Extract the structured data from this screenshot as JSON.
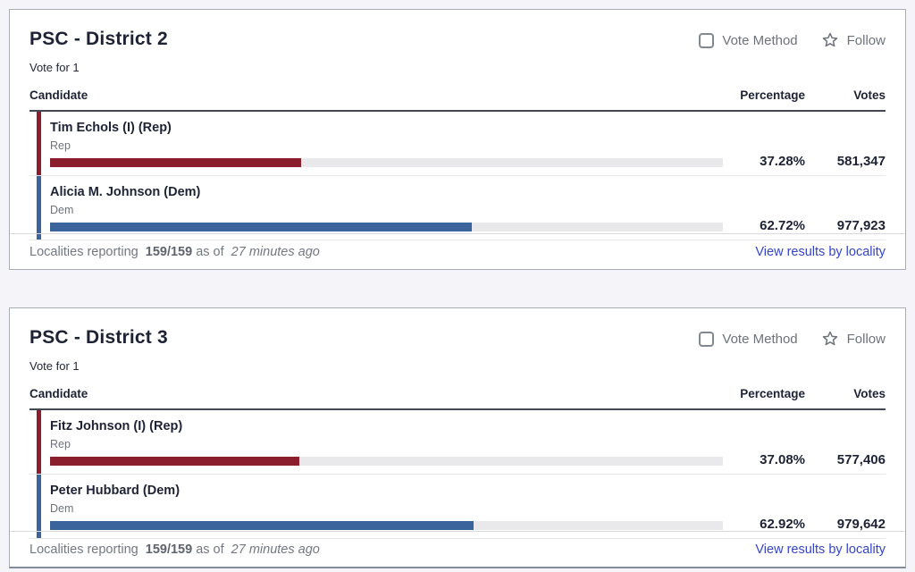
{
  "colors": {
    "rep": "#8b1e2d",
    "dem": "#3b639c",
    "bar_track": "#e9e9ec",
    "link": "#3344cc"
  },
  "cards": [
    {
      "title": "PSC - District 2",
      "vote_for": "Vote for 1",
      "vote_method_label": "Vote Method",
      "follow_label": "Follow",
      "columns": {
        "candidate": "Candidate",
        "percentage": "Percentage",
        "votes": "Votes"
      },
      "candidates": [
        {
          "name": "Tim Echols (I) (Rep)",
          "party": "Rep",
          "percentage": "37.28%",
          "votes": "581,347",
          "percent_value": 37.28,
          "color": "#8b1e2d"
        },
        {
          "name": "Alicia M. Johnson (Dem)",
          "party": "Dem",
          "percentage": "62.72%",
          "votes": "977,923",
          "percent_value": 62.72,
          "color": "#3b639c"
        }
      ],
      "footer": {
        "reporting_label": "Localities reporting",
        "reporting_count": "159/159",
        "as_of_label": "as of",
        "updated_ago": "27 minutes ago",
        "link_label": "View results by locality"
      }
    },
    {
      "title": "PSC - District 3",
      "vote_for": "Vote for 1",
      "vote_method_label": "Vote Method",
      "follow_label": "Follow",
      "columns": {
        "candidate": "Candidate",
        "percentage": "Percentage",
        "votes": "Votes"
      },
      "candidates": [
        {
          "name": "Fitz Johnson (I) (Rep)",
          "party": "Rep",
          "percentage": "37.08%",
          "votes": "577,406",
          "percent_value": 37.08,
          "color": "#8b1e2d"
        },
        {
          "name": "Peter Hubbard (Dem)",
          "party": "Dem",
          "percentage": "62.92%",
          "votes": "979,642",
          "percent_value": 62.92,
          "color": "#3b639c"
        }
      ],
      "footer": {
        "reporting_label": "Localities reporting",
        "reporting_count": "159/159",
        "as_of_label": "as of",
        "updated_ago": "27 minutes ago",
        "link_label": "View results by locality"
      }
    }
  ]
}
